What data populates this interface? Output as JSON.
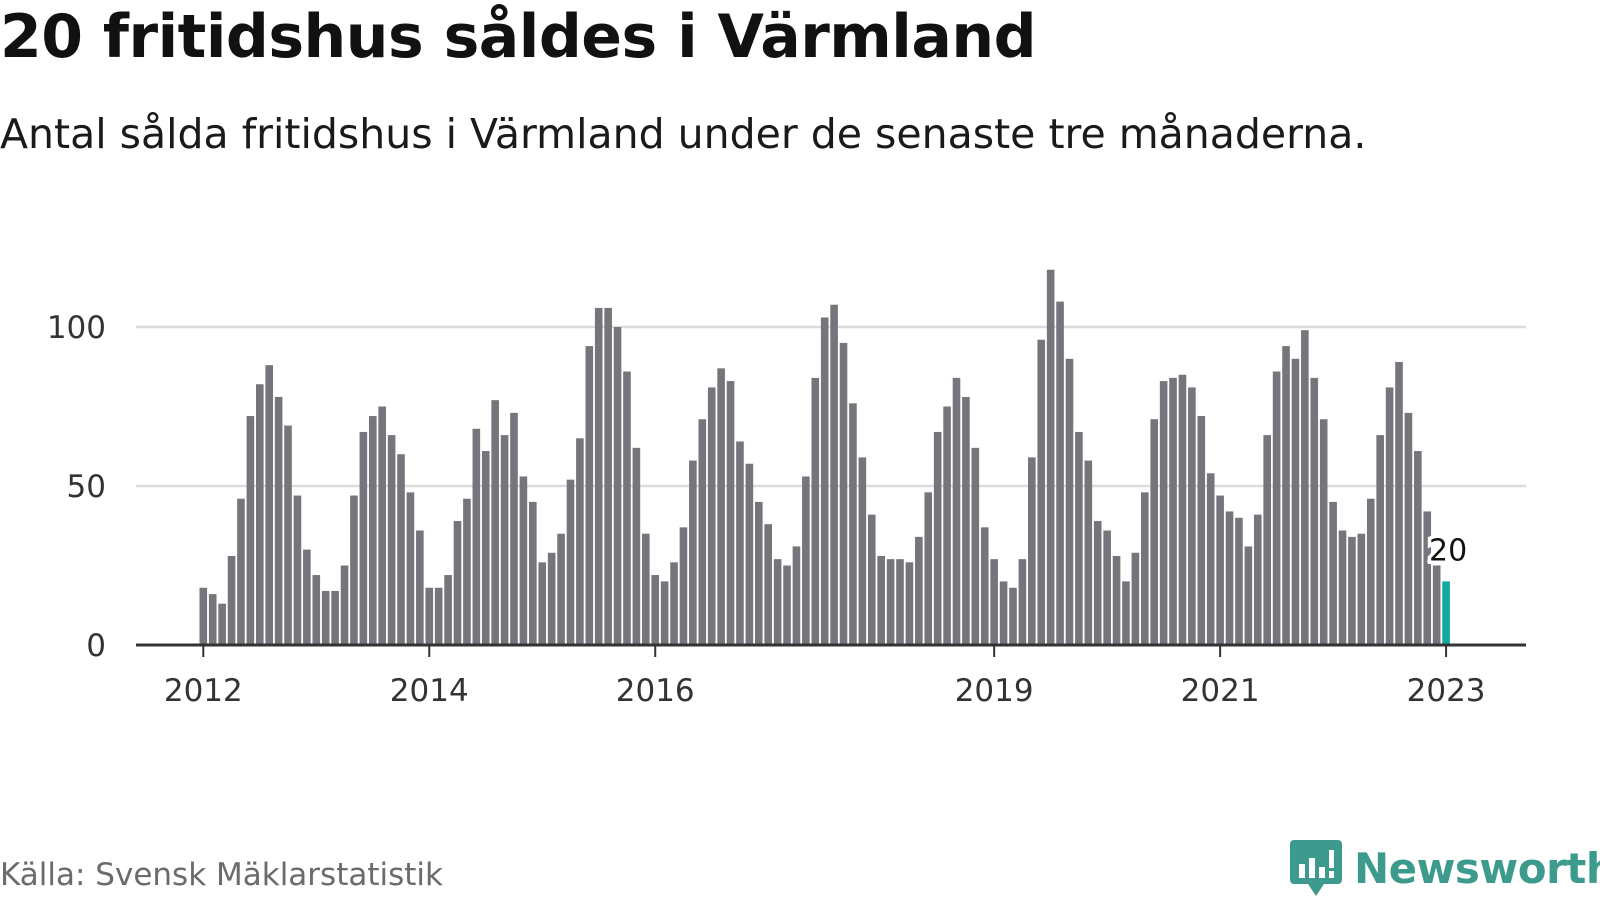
{
  "title": "20 fritidshus såldes i Värmland",
  "subtitle": "Antal sålda fritidshus i Värmland under de senaste tre månaderna.",
  "source": "Källa: Svensk Mäklarstatistik",
  "brand": "Newsworthy",
  "colors": {
    "bar": "#76757b",
    "highlight": "#13a89e",
    "grid": "#dcdcdc",
    "axis": "#333333",
    "brand": "#3d9b8e"
  },
  "chart_data": {
    "type": "bar",
    "title": "20 fritidshus såldes i Värmland",
    "subtitle": "Antal sålda fritidshus i Värmland under de senaste tre månaderna.",
    "xlabel": "",
    "ylabel": "",
    "ylim": [
      0,
      120
    ],
    "yticks": [
      0,
      50,
      100
    ],
    "grid": true,
    "x_start": "2012-01",
    "x_tick_labels": [
      "2012",
      "2014",
      "2016",
      "2019",
      "2021",
      "2023"
    ],
    "x_tick_months": [
      0,
      24,
      48,
      84,
      108,
      132
    ],
    "series": [
      {
        "values": [
          18,
          16,
          13,
          28,
          46,
          72,
          82,
          88,
          78,
          69,
          47,
          30,
          22,
          17,
          17,
          25,
          47,
          67,
          72,
          75,
          66,
          60,
          48,
          36,
          18,
          18,
          22,
          39,
          46,
          68,
          61,
          77,
          66,
          73,
          53,
          45,
          26,
          29,
          35,
          52,
          65,
          94,
          106,
          106,
          100,
          86,
          62,
          35,
          22,
          20,
          26,
          37,
          58,
          71,
          81,
          87,
          83,
          64,
          57,
          45,
          38,
          27,
          25,
          31,
          53,
          84,
          103,
          107,
          95,
          76,
          59,
          41,
          28,
          27,
          27,
          26,
          34,
          48,
          67,
          75,
          84,
          78,
          62,
          37,
          27,
          20,
          18,
          27,
          59,
          96,
          118,
          108,
          90,
          67,
          58,
          39,
          36,
          28,
          20,
          29,
          48,
          71,
          83,
          84,
          85,
          81,
          72,
          54,
          47,
          42,
          40,
          31,
          41,
          66,
          86,
          94,
          90,
          99,
          84,
          71,
          45,
          36,
          34,
          35,
          46,
          66,
          81,
          89,
          73,
          61,
          42,
          25,
          20
        ]
      }
    ],
    "highlight_last": true,
    "annotation": "20"
  }
}
